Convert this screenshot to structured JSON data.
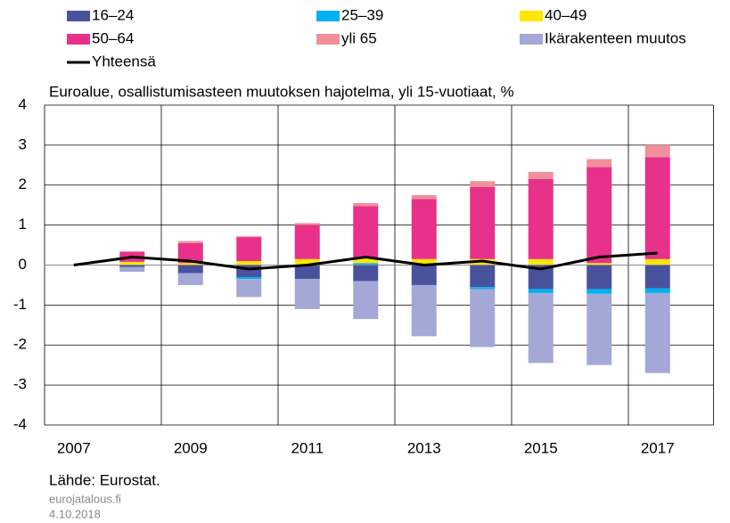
{
  "chart_data": {
    "type": "bar",
    "stacked": true,
    "title": "Euroalue, osallistumisasteen muutoksen hajotelma, yli 15-vuotiaat, %",
    "categories": [
      "2007",
      null,
      "2009",
      null,
      "2011",
      null,
      "2013",
      null,
      "2015",
      null,
      "2017"
    ],
    "series": [
      {
        "name": "16–24",
        "color": "#4a529e",
        "values": [
          null,
          -0.05,
          -0.2,
          -0.3,
          -0.35,
          -0.4,
          -0.5,
          -0.55,
          -0.6,
          -0.6,
          -0.58
        ]
      },
      {
        "name": "25–39",
        "color": "#00b0f0",
        "values": [
          null,
          0,
          0,
          -0.05,
          0,
          0.05,
          0.02,
          -0.05,
          -0.1,
          -0.12,
          -0.12
        ]
      },
      {
        "name": "40–49",
        "color": "#ffe600",
        "values": [
          null,
          0.08,
          0.05,
          0.1,
          0.15,
          0.12,
          0.13,
          0.15,
          0.15,
          0.05,
          0.15
        ]
      },
      {
        "name": "50–64",
        "color": "#e8318a",
        "values": [
          null,
          0.25,
          0.5,
          0.6,
          0.85,
          1.3,
          1.5,
          1.8,
          2.0,
          2.4,
          2.55
        ]
      },
      {
        "name": "yli 65",
        "color": "#f0909a",
        "values": [
          null,
          0.02,
          0.05,
          0.02,
          0.05,
          0.08,
          0.1,
          0.15,
          0.18,
          0.2,
          0.3
        ]
      },
      {
        "name": "Ikärakenteen muutos",
        "color": "#a3a8d6",
        "values": [
          null,
          -0.12,
          -0.3,
          -0.45,
          -0.75,
          -0.95,
          -1.28,
          -1.45,
          -1.75,
          -1.78,
          -2.0
        ]
      },
      {
        "name": "Yhteensä",
        "color": "#000000",
        "type": "line",
        "values": [
          0,
          0.2,
          0.1,
          -0.1,
          0,
          0.2,
          0,
          0.1,
          -0.1,
          0.2,
          0.3
        ]
      }
    ],
    "ylim": [
      -4,
      4
    ],
    "yticks": [
      -4,
      -3,
      -2,
      -1,
      0,
      1,
      2,
      3,
      4
    ],
    "grid": true,
    "source": "Lähde: Eurostat.",
    "site": "eurojatalous.fi",
    "date": "4.10.2018"
  }
}
